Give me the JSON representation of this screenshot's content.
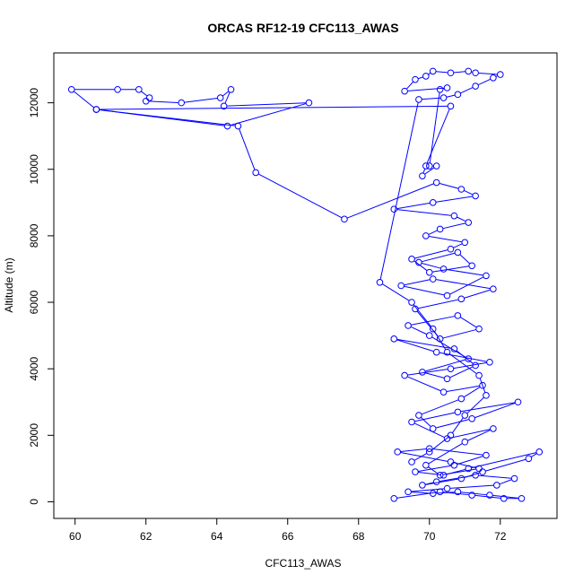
{
  "chart_data": {
    "type": "line",
    "title": "ORCAS RF12-19 CFC113_AWAS",
    "xlabel": "CFC113_AWAS",
    "ylabel": "Altitude (m)",
    "xlim": [
      59.4,
      73.6
    ],
    "ylim": [
      -500,
      13500
    ],
    "xticks": [
      60,
      62,
      64,
      66,
      68,
      70,
      72
    ],
    "yticks": [
      0,
      2000,
      4000,
      6000,
      8000,
      10000,
      12000
    ],
    "grid": false,
    "legend": "none",
    "series_color": "#0000ff",
    "marker": "open-circle",
    "series": [
      {
        "x": [
          69.0,
          70.3,
          71.2,
          72.1,
          72.6,
          71.7,
          70.8,
          70.1,
          69.4,
          70.5,
          71.9,
          72.4,
          71.3,
          70.2,
          69.8,
          70.9,
          71.5,
          72.8,
          73.1,
          71.1,
          70.4,
          69.6,
          70.7,
          71.6,
          70.0,
          69.1,
          70.6,
          71.4,
          70.3,
          69.9,
          71.0,
          71.8,
          70.5,
          69.5,
          70.8,
          72.5,
          71.2,
          70.1,
          69.7,
          70.9,
          71.5,
          70.4,
          69.3,
          70.6,
          71.7,
          70.2,
          69.0,
          70.7,
          71.3,
          70.5,
          69.8,
          71.1,
          70.0,
          69.4,
          70.8,
          71.4,
          70.3,
          69.6,
          70.9,
          71.8,
          70.1,
          69.2,
          70.5,
          71.6,
          70.4,
          69.7,
          70.8,
          71.2,
          70.0,
          69.5,
          70.6,
          71.0,
          69.9,
          70.3,
          71.1,
          70.7,
          69.0,
          70.1,
          71.3,
          70.9,
          70.2,
          67.6,
          65.1,
          64.6,
          60.6,
          59.9,
          61.2,
          61.8,
          62.1,
          62.0,
          63.0,
          64.1,
          64.4,
          64.2,
          66.6,
          64.3,
          60.6,
          70.6,
          69.9,
          69.8,
          70.2,
          70.0,
          70.3,
          70.5,
          69.3,
          69.6,
          69.9,
          70.1,
          70.6,
          71.1,
          71.3,
          72.0,
          71.8,
          71.3,
          70.8,
          70.4,
          69.7,
          68.6,
          69.5,
          70.1,
          70.5,
          71.4,
          71.6,
          71.0,
          70.6,
          70.0,
          69.5
        ],
        "y": [
          100,
          300,
          200,
          100,
          100,
          200,
          300,
          250,
          300,
          400,
          500,
          700,
          800,
          600,
          500,
          700,
          900,
          1300,
          1500,
          1000,
          800,
          900,
          1100,
          1400,
          1600,
          1500,
          1200,
          1000,
          800,
          1100,
          1800,
          2200,
          1900,
          2400,
          2700,
          3000,
          2500,
          2200,
          2600,
          3100,
          3500,
          3300,
          3800,
          4000,
          4200,
          4500,
          4900,
          4600,
          4100,
          3700,
          3900,
          4300,
          5000,
          5300,
          5600,
          5200,
          4900,
          5800,
          6100,
          6400,
          6700,
          6500,
          6200,
          6800,
          7000,
          7200,
          7500,
          7100,
          6900,
          7300,
          7600,
          7800,
          8000,
          8200,
          8400,
          8600,
          8800,
          9000,
          9200,
          9400,
          9600,
          8500,
          9900,
          11300,
          11800,
          12400,
          12400,
          12400,
          12150,
          12050,
          12000,
          12150,
          12400,
          11900,
          12000,
          11300,
          11800,
          11900,
          10100,
          9800,
          10100,
          10100,
          12400,
          12450,
          12350,
          12700,
          12800,
          12950,
          12900,
          12950,
          12900,
          12850,
          12750,
          12500,
          12250,
          12150,
          12100,
          6600,
          6000,
          5200,
          4500,
          3800,
          3200,
          2600,
          2000,
          1500,
          1200
        ]
      }
    ]
  }
}
